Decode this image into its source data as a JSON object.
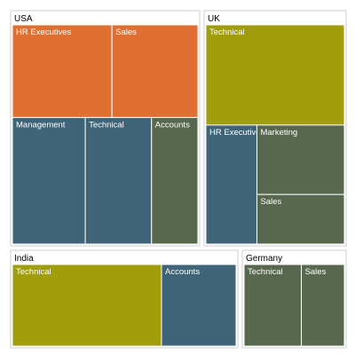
{
  "chart_data": {
    "type": "treemap",
    "colors": {
      "orange": "#DF6F32",
      "olive": "#A19E0E",
      "teal": "#3F6477",
      "sage": "#58684F"
    },
    "groups": [
      {
        "name": "USA",
        "children": [
          {
            "name": "HR Executives",
            "value": 22,
            "color": "orange"
          },
          {
            "name": "Sales",
            "value": 19,
            "color": "orange"
          },
          {
            "name": "Management",
            "value": 22,
            "color": "teal"
          },
          {
            "name": "Technical",
            "value": 20,
            "color": "teal"
          },
          {
            "name": "Accounts",
            "value": 14,
            "color": "sage"
          }
        ]
      },
      {
        "name": "UK",
        "children": [
          {
            "name": "Technical",
            "value": 16,
            "color": "olive"
          },
          {
            "name": "HR Executives",
            "value": 7,
            "color": "teal"
          },
          {
            "name": "Marketing",
            "value": 7,
            "color": "sage"
          },
          {
            "name": "Sales",
            "value": 5,
            "color": "sage"
          }
        ]
      },
      {
        "name": "India",
        "children": [
          {
            "name": "Technical",
            "value": 16,
            "color": "olive"
          },
          {
            "name": "Accounts",
            "value": 8,
            "color": "teal"
          }
        ]
      },
      {
        "name": "Germany",
        "children": [
          {
            "name": "Technical",
            "value": 8,
            "color": "sage"
          },
          {
            "name": "Sales",
            "value": 6,
            "color": "sage"
          }
        ]
      }
    ]
  }
}
